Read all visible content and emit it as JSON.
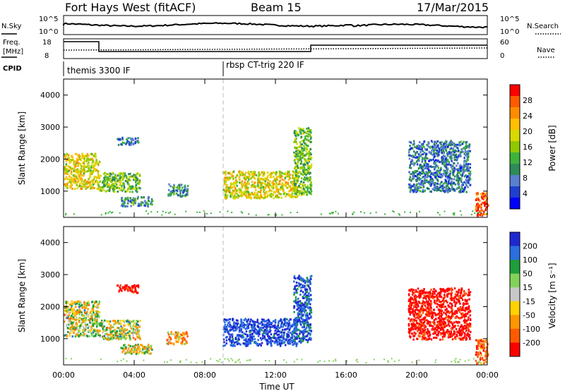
{
  "header": {
    "title": "Fort Hays West (fitACF)",
    "beam": "Beam 15",
    "date": "17/Mar/2015"
  },
  "sky_panel": {
    "left_label": "N.Sky",
    "right_label": "N.Search",
    "ticks_left": [
      "10^5",
      "10^0"
    ],
    "ticks_right": [
      "10^5",
      "10^0"
    ]
  },
  "freq_panel": {
    "left_label_1": "Freq.",
    "left_label_2": "[MHz]",
    "right_label": "Nave",
    "ticks_left": [
      "18",
      "8"
    ],
    "ticks_right": [
      "60",
      "0"
    ]
  },
  "cpid_panel": {
    "label": "CPID",
    "programs": [
      "themis 3300 IF",
      "rbsp CT-trig 220 IF"
    ]
  },
  "chart_data": [
    {
      "type": "heatmap",
      "title": "",
      "ylabel": "Slant Range [km]",
      "xlabel": "",
      "yticks": [
        "1000",
        "2000",
        "3000",
        "4000"
      ],
      "xticks": [
        "00:00",
        "04:00",
        "08:00",
        "12:00",
        "16:00",
        "20:00",
        "00:00"
      ],
      "xlim": [
        0,
        24
      ],
      "ylim": [
        180,
        4500
      ],
      "colorbar": {
        "label": "Power [dB]",
        "ticks": [
          "28",
          "24",
          "20",
          "16",
          "12",
          "8",
          "4"
        ],
        "colors": [
          "#ff0000",
          "#ff5a00",
          "#ff8c00",
          "#ffbe00",
          "#d9d900",
          "#90c800",
          "#3cb43c",
          "#2e8b57",
          "#5a7fd0",
          "#1e3fd0",
          "#0000ff"
        ]
      },
      "echo_regions": [
        {
          "t0": 0.0,
          "t1": 2.0,
          "r0": 1100,
          "r1": 2200,
          "value": 18
        },
        {
          "t0": 2.0,
          "t1": 4.3,
          "r0": 1000,
          "r1": 1600,
          "value": 14
        },
        {
          "t0": 3.0,
          "t1": 4.2,
          "r0": 2450,
          "r1": 2700,
          "value": 8
        },
        {
          "t0": 3.2,
          "t1": 5.0,
          "r0": 550,
          "r1": 850,
          "value": 10
        },
        {
          "t0": 5.8,
          "t1": 7.0,
          "r0": 850,
          "r1": 1250,
          "value": 10
        },
        {
          "t0": 9.0,
          "t1": 13.2,
          "r0": 800,
          "r1": 1650,
          "value": 18
        },
        {
          "t0": 13.0,
          "t1": 14.0,
          "r0": 900,
          "r1": 3000,
          "value": 14
        },
        {
          "t0": 19.5,
          "t1": 23.0,
          "r0": 1000,
          "r1": 2600,
          "value": 8
        },
        {
          "t0": 23.3,
          "t1": 24.0,
          "r0": 250,
          "r1": 1000,
          "value": 26
        }
      ]
    },
    {
      "type": "heatmap",
      "title": "",
      "ylabel": "Slant Range [km]",
      "xlabel": "Time UT",
      "yticks": [
        "1000",
        "2000",
        "3000",
        "4000"
      ],
      "xticks": [
        "00:00",
        "04:00",
        "08:00",
        "12:00",
        "16:00",
        "20:00",
        "00:00"
      ],
      "xlim": [
        0,
        24
      ],
      "ylim": [
        180,
        4500
      ],
      "colorbar": {
        "label": "Velocity [m s⁻¹]",
        "ticks": [
          "200",
          "100",
          "50",
          "15",
          "-15",
          "-50",
          "-100",
          "-200"
        ],
        "colors": [
          "#1e28d2",
          "#2a6ee0",
          "#1e9e3c",
          "#82d25a",
          "#c8c8c8",
          "#ffd200",
          "#ff9600",
          "#ff5a00",
          "#ff0000"
        ]
      },
      "echo_regions": [
        {
          "t0": 0.0,
          "t1": 2.0,
          "r0": 1100,
          "r1": 2200,
          "value": 0
        },
        {
          "t0": 2.0,
          "t1": 4.3,
          "r0": 1000,
          "r1": 1600,
          "value": 0
        },
        {
          "t0": 3.0,
          "t1": 4.2,
          "r0": 2450,
          "r1": 2700,
          "value": -200
        },
        {
          "t0": 3.2,
          "t1": 5.0,
          "r0": 550,
          "r1": 850,
          "value": 0
        },
        {
          "t0": 5.8,
          "t1": 7.0,
          "r0": 850,
          "r1": 1250,
          "value": -50
        },
        {
          "t0": 9.0,
          "t1": 13.2,
          "r0": 800,
          "r1": 1650,
          "value": 150
        },
        {
          "t0": 13.0,
          "t1": 14.0,
          "r0": 900,
          "r1": 3000,
          "value": 120
        },
        {
          "t0": 19.5,
          "t1": 23.0,
          "r0": 1000,
          "r1": 2600,
          "value": -200
        },
        {
          "t0": 23.3,
          "t1": 24.0,
          "r0": 250,
          "r1": 1000,
          "value": -100
        }
      ]
    }
  ]
}
